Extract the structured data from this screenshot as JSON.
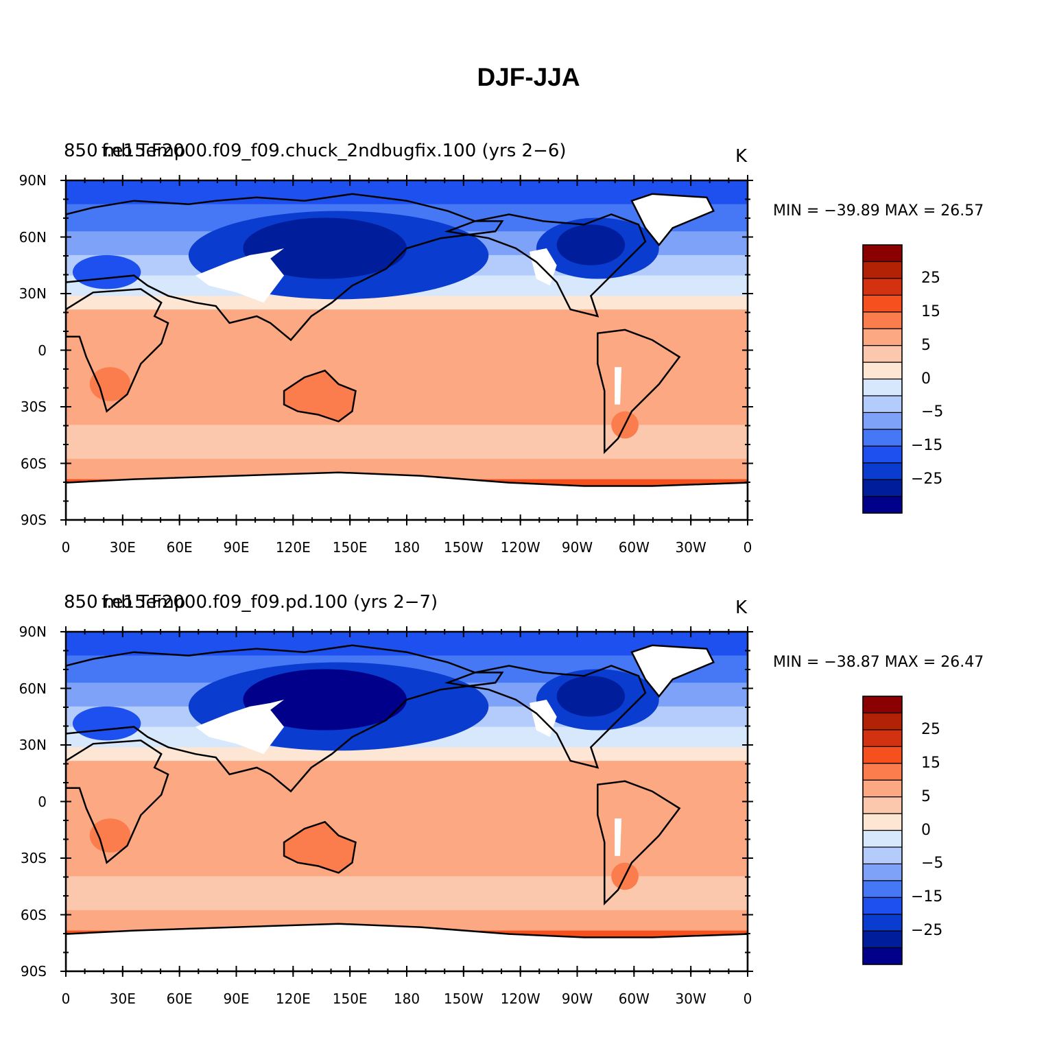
{
  "figure_title": "DJF-JJA",
  "latitude_ticks": [
    "90N",
    "60N",
    "30N",
    "0",
    "30S",
    "60S",
    "90S"
  ],
  "longitude_ticks": [
    "0",
    "30E",
    "60E",
    "90E",
    "120E",
    "150E",
    "180",
    "150W",
    "120W",
    "90W",
    "60W",
    "30W",
    "0"
  ],
  "colorbar": {
    "colors": [
      "#00008b",
      "#001e9c",
      "#0a3ccf",
      "#1e50f0",
      "#4678f5",
      "#7ea2f7",
      "#b4ccfb",
      "#d7e8fd",
      "#fde6d3",
      "#fcc8ad",
      "#fca882",
      "#fb7c4c",
      "#f5501e",
      "#d2320f",
      "#b42206",
      "#8b0000"
    ],
    "tick_labels": [
      "25",
      "15",
      "5",
      "0",
      "−5",
      "−15",
      "−25"
    ]
  },
  "panels": [
    {
      "title_left": "850 mb Temp",
      "title_center": "f.e15.F2000.f09_f09.chuck_2ndbugfix.100 (yrs 2−6)",
      "units": "K",
      "min_max_text": "MIN = −39.89 MAX =   26.57",
      "min": -39.89,
      "max": 26.57
    },
    {
      "title_left": "850 mb Temp",
      "title_center": "f.e15.F2000.f09_f09.pd.100 (yrs 2−7)",
      "units": "K",
      "min_max_text": "MIN = −38.87 MAX =   26.47",
      "min": -38.87,
      "max": 26.47
    }
  ]
}
